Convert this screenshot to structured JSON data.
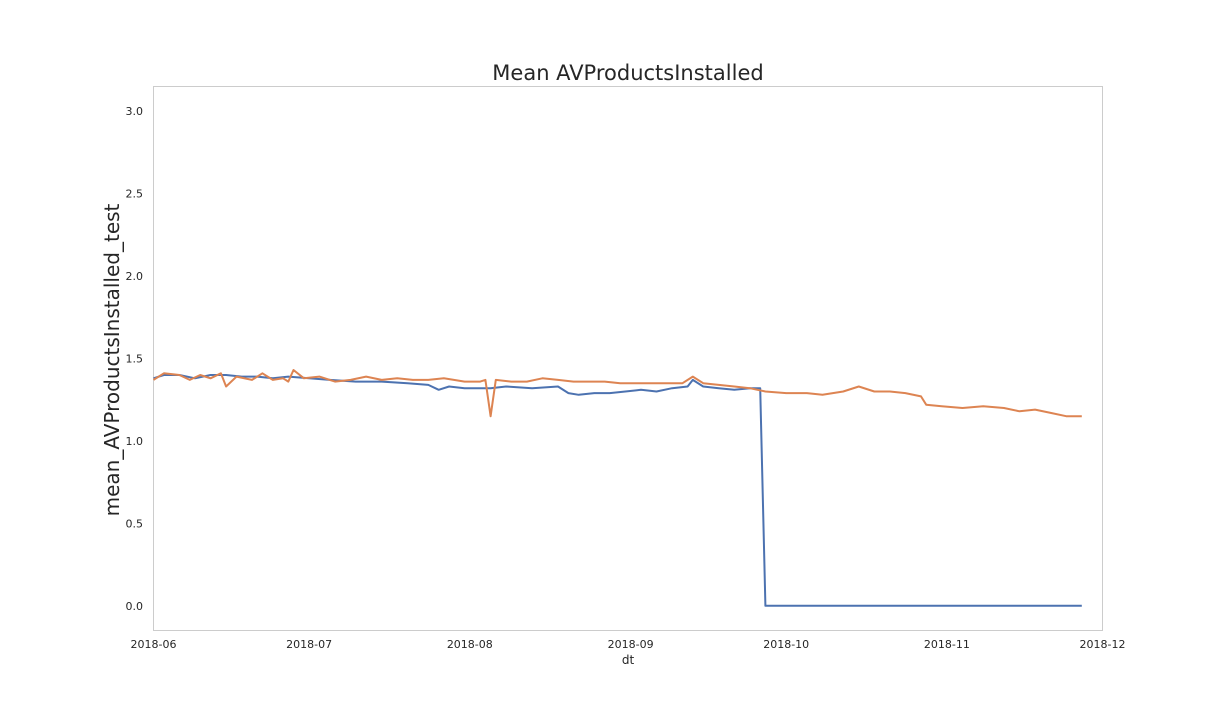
{
  "chart_data": {
    "type": "line",
    "title": "Mean AVProductsInstalled",
    "xlabel": "dt",
    "ylabel": "mean_AVProductsInstalled_test",
    "xlim": [
      "2018-06-01",
      "2018-12-01"
    ],
    "ylim": [
      -0.15,
      3.15
    ],
    "grid": false,
    "x_ticks": [
      "2018-06",
      "2018-07",
      "2018-08",
      "2018-09",
      "2018-10",
      "2018-11",
      "2018-12"
    ],
    "y_ticks": [
      "0.0",
      "0.5",
      "1.0",
      "1.5",
      "2.0",
      "2.5",
      "3.0"
    ],
    "series": [
      {
        "color": "#4c72b0",
        "points": [
          [
            "2018-06-01",
            1.38
          ],
          [
            "2018-06-03",
            1.4
          ],
          [
            "2018-06-06",
            1.4
          ],
          [
            "2018-06-09",
            1.38
          ],
          [
            "2018-06-12",
            1.4
          ],
          [
            "2018-06-15",
            1.4
          ],
          [
            "2018-06-18",
            1.39
          ],
          [
            "2018-06-21",
            1.39
          ],
          [
            "2018-06-24",
            1.38
          ],
          [
            "2018-06-27",
            1.39
          ],
          [
            "2018-07-01",
            1.38
          ],
          [
            "2018-07-05",
            1.37
          ],
          [
            "2018-07-10",
            1.36
          ],
          [
            "2018-07-15",
            1.36
          ],
          [
            "2018-07-20",
            1.35
          ],
          [
            "2018-07-24",
            1.34
          ],
          [
            "2018-07-26",
            1.31
          ],
          [
            "2018-07-28",
            1.33
          ],
          [
            "2018-07-31",
            1.32
          ],
          [
            "2018-08-05",
            1.32
          ],
          [
            "2018-08-08",
            1.33
          ],
          [
            "2018-08-13",
            1.32
          ],
          [
            "2018-08-18",
            1.33
          ],
          [
            "2018-08-20",
            1.29
          ],
          [
            "2018-08-22",
            1.28
          ],
          [
            "2018-08-25",
            1.29
          ],
          [
            "2018-08-28",
            1.29
          ],
          [
            "2018-08-31",
            1.3
          ],
          [
            "2018-09-03",
            1.31
          ],
          [
            "2018-09-06",
            1.3
          ],
          [
            "2018-09-09",
            1.32
          ],
          [
            "2018-09-12",
            1.33
          ],
          [
            "2018-09-13",
            1.37
          ],
          [
            "2018-09-15",
            1.33
          ],
          [
            "2018-09-18",
            1.32
          ],
          [
            "2018-09-21",
            1.31
          ],
          [
            "2018-09-24",
            1.32
          ],
          [
            "2018-09-26",
            1.32
          ],
          [
            "2018-09-27",
            0.0
          ],
          [
            "2018-11-27",
            0.0
          ]
        ]
      },
      {
        "color": "#dd8452",
        "points": [
          [
            "2018-06-01",
            1.37
          ],
          [
            "2018-06-03",
            1.41
          ],
          [
            "2018-06-06",
            1.4
          ],
          [
            "2018-06-08",
            1.37
          ],
          [
            "2018-06-10",
            1.4
          ],
          [
            "2018-06-12",
            1.38
          ],
          [
            "2018-06-14",
            1.41
          ],
          [
            "2018-06-15",
            1.33
          ],
          [
            "2018-06-17",
            1.39
          ],
          [
            "2018-06-20",
            1.37
          ],
          [
            "2018-06-22",
            1.41
          ],
          [
            "2018-06-24",
            1.37
          ],
          [
            "2018-06-26",
            1.38
          ],
          [
            "2018-06-27",
            1.36
          ],
          [
            "2018-06-28",
            1.43
          ],
          [
            "2018-06-30",
            1.38
          ],
          [
            "2018-07-03",
            1.39
          ],
          [
            "2018-07-06",
            1.36
          ],
          [
            "2018-07-09",
            1.37
          ],
          [
            "2018-07-12",
            1.39
          ],
          [
            "2018-07-15",
            1.37
          ],
          [
            "2018-07-18",
            1.38
          ],
          [
            "2018-07-21",
            1.37
          ],
          [
            "2018-07-24",
            1.37
          ],
          [
            "2018-07-27",
            1.38
          ],
          [
            "2018-07-31",
            1.36
          ],
          [
            "2018-08-03",
            1.36
          ],
          [
            "2018-08-04",
            1.37
          ],
          [
            "2018-08-05",
            1.15
          ],
          [
            "2018-08-06",
            1.37
          ],
          [
            "2018-08-09",
            1.36
          ],
          [
            "2018-08-12",
            1.36
          ],
          [
            "2018-08-15",
            1.38
          ],
          [
            "2018-08-18",
            1.37
          ],
          [
            "2018-08-21",
            1.36
          ],
          [
            "2018-08-24",
            1.36
          ],
          [
            "2018-08-27",
            1.36
          ],
          [
            "2018-08-30",
            1.35
          ],
          [
            "2018-09-03",
            1.35
          ],
          [
            "2018-09-07",
            1.35
          ],
          [
            "2018-09-11",
            1.35
          ],
          [
            "2018-09-13",
            1.39
          ],
          [
            "2018-09-15",
            1.35
          ],
          [
            "2018-09-18",
            1.34
          ],
          [
            "2018-09-21",
            1.33
          ],
          [
            "2018-09-24",
            1.32
          ],
          [
            "2018-09-27",
            1.3
          ],
          [
            "2018-10-01",
            1.29
          ],
          [
            "2018-10-05",
            1.29
          ],
          [
            "2018-10-08",
            1.28
          ],
          [
            "2018-10-12",
            1.3
          ],
          [
            "2018-10-15",
            1.33
          ],
          [
            "2018-10-18",
            1.3
          ],
          [
            "2018-10-21",
            1.3
          ],
          [
            "2018-10-24",
            1.29
          ],
          [
            "2018-10-27",
            1.27
          ],
          [
            "2018-10-28",
            1.22
          ],
          [
            "2018-10-31",
            1.21
          ],
          [
            "2018-11-04",
            1.2
          ],
          [
            "2018-11-08",
            1.21
          ],
          [
            "2018-11-12",
            1.2
          ],
          [
            "2018-11-15",
            1.18
          ],
          [
            "2018-11-18",
            1.19
          ],
          [
            "2018-11-21",
            1.17
          ],
          [
            "2018-11-24",
            1.15
          ],
          [
            "2018-11-27",
            1.15
          ]
        ]
      }
    ]
  }
}
